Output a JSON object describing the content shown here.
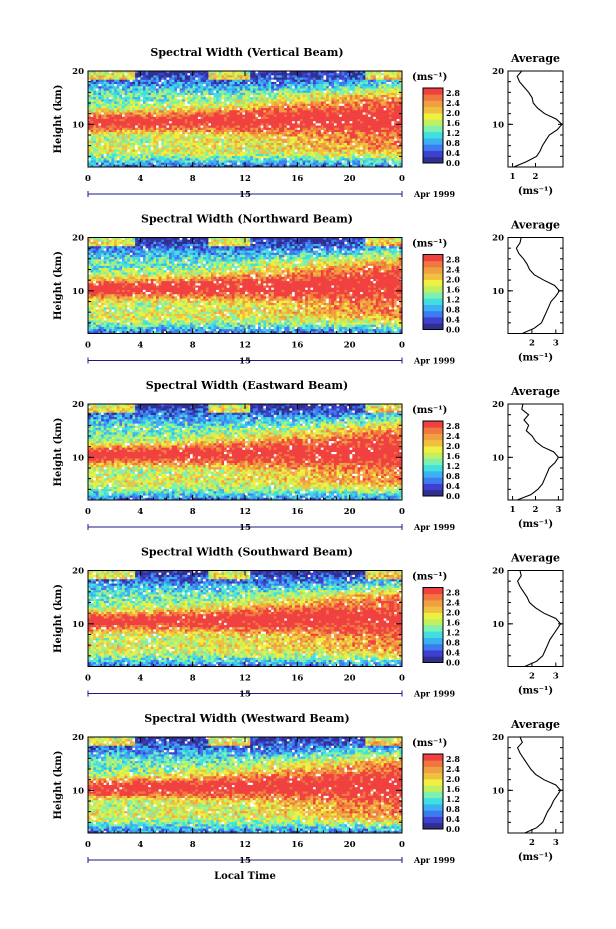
{
  "figure": {
    "x_axis_label": "Local Time",
    "date_label": "Apr 1999",
    "date_tick": "15",
    "colorbar_unit": "(ms⁻¹)",
    "colorbar_ticks": [
      "0.0",
      "0.4",
      "0.8",
      "1.2",
      "1.6",
      "2.0",
      "2.4",
      "2.8"
    ],
    "colorbar_colors": [
      "#2f2f8f",
      "#4040d0",
      "#3c7cf0",
      "#3cb0f0",
      "#40e0e0",
      "#7ef0b0",
      "#c0f060",
      "#f0f040",
      "#f0c040",
      "#f0a040",
      "#f07840",
      "#f04040"
    ]
  },
  "chart_data": [
    {
      "type": "heatmap",
      "title": "Spectral Width (Vertical Beam)",
      "ylabel": "Height (km)",
      "x_ticks": [
        "0",
        "4",
        "8",
        "12",
        "16",
        "20",
        "0"
      ],
      "y_ticks": [
        "20",
        "10"
      ],
      "xlim": [
        0,
        24
      ],
      "ylim": [
        2,
        20
      ],
      "colorbar_range": [
        0.0,
        2.8
      ],
      "average": {
        "title": "Average",
        "xlabel": "(ms⁻¹)",
        "x_ticks": [
          "1",
          "2"
        ],
        "xlim": [
          0.8,
          3.2
        ],
        "heights": [
          2,
          3,
          4,
          5,
          6,
          7,
          8,
          9,
          10,
          11,
          12,
          13,
          14,
          15,
          16,
          17,
          18,
          19,
          20
        ],
        "values": [
          1.05,
          1.6,
          2.05,
          2.2,
          2.3,
          2.45,
          2.6,
          2.95,
          3.15,
          2.9,
          2.4,
          2.1,
          1.9,
          1.85,
          1.7,
          1.5,
          1.3,
          1.2,
          1.4
        ]
      }
    },
    {
      "type": "heatmap",
      "title": "Spectral Width (Northward Beam)",
      "ylabel": "Height (km)",
      "x_ticks": [
        "0",
        "4",
        "8",
        "12",
        "16",
        "20",
        "0"
      ],
      "y_ticks": [
        "20",
        "10"
      ],
      "xlim": [
        0,
        24
      ],
      "ylim": [
        2,
        20
      ],
      "colorbar_range": [
        0.0,
        2.8
      ],
      "average": {
        "title": "Average",
        "xlabel": "(ms⁻¹)",
        "x_ticks": [
          "2",
          "3"
        ],
        "xlim": [
          1.0,
          3.3
        ],
        "heights": [
          2,
          3,
          4,
          5,
          6,
          7,
          8,
          9,
          10,
          11,
          12,
          13,
          14,
          15,
          16,
          17,
          18,
          19,
          20
        ],
        "values": [
          1.6,
          2.1,
          2.4,
          2.5,
          2.6,
          2.7,
          2.8,
          3.0,
          3.15,
          2.95,
          2.5,
          2.1,
          1.9,
          1.8,
          1.65,
          1.45,
          1.35,
          1.5,
          1.55
        ]
      }
    },
    {
      "type": "heatmap",
      "title": "Spectral Width (Eastward Beam)",
      "ylabel": "Height (km)",
      "x_ticks": [
        "0",
        "4",
        "8",
        "12",
        "16",
        "20",
        "0"
      ],
      "y_ticks": [
        "20",
        "10"
      ],
      "xlim": [
        0,
        24
      ],
      "ylim": [
        2,
        20
      ],
      "colorbar_range": [
        0.0,
        2.8
      ],
      "average": {
        "title": "Average",
        "xlabel": "(ms⁻¹)",
        "x_ticks": [
          "1",
          "2",
          "3"
        ],
        "xlim": [
          0.8,
          3.2
        ],
        "heights": [
          2,
          3,
          4,
          5,
          6,
          7,
          8,
          9,
          10,
          11,
          12,
          13,
          14,
          15,
          16,
          17,
          18,
          19,
          20
        ],
        "values": [
          1.2,
          1.8,
          2.1,
          2.3,
          2.4,
          2.5,
          2.6,
          2.85,
          3.0,
          2.8,
          2.3,
          2.0,
          1.85,
          1.6,
          1.7,
          1.5,
          1.7,
          1.4,
          1.45
        ]
      }
    },
    {
      "type": "heatmap",
      "title": "Spectral Width (Southward Beam)",
      "ylabel": "Height (km)",
      "x_ticks": [
        "0",
        "4",
        "8",
        "12",
        "16",
        "20",
        "0"
      ],
      "y_ticks": [
        "20",
        "10"
      ],
      "xlim": [
        0,
        24
      ],
      "ylim": [
        2,
        20
      ],
      "colorbar_range": [
        0.0,
        2.8
      ],
      "average": {
        "title": "Average",
        "xlabel": "(ms⁻¹)",
        "x_ticks": [
          "2",
          "3"
        ],
        "xlim": [
          1.0,
          3.3
        ],
        "heights": [
          2,
          3,
          4,
          5,
          6,
          7,
          8,
          9,
          10,
          11,
          12,
          13,
          14,
          15,
          16,
          17,
          18,
          19,
          20
        ],
        "values": [
          1.7,
          2.2,
          2.45,
          2.55,
          2.65,
          2.75,
          2.9,
          3.05,
          3.2,
          3.0,
          2.5,
          2.15,
          1.9,
          1.8,
          1.65,
          1.5,
          1.4,
          1.55,
          1.5
        ]
      }
    },
    {
      "type": "heatmap",
      "title": "Spectral Width (Westward Beam)",
      "ylabel": "Height (km)",
      "x_ticks": [
        "0",
        "4",
        "8",
        "12",
        "16",
        "20",
        "0"
      ],
      "y_ticks": [
        "20",
        "10"
      ],
      "xlim": [
        0,
        24
      ],
      "ylim": [
        2,
        20
      ],
      "colorbar_range": [
        0.0,
        2.8
      ],
      "average": {
        "title": "Average",
        "xlabel": "(ms⁻¹)",
        "x_ticks": [
          "2",
          "3"
        ],
        "xlim": [
          1.0,
          3.3
        ],
        "heights": [
          2,
          3,
          4,
          5,
          6,
          7,
          8,
          9,
          10,
          11,
          12,
          13,
          14,
          15,
          16,
          17,
          18,
          19,
          20
        ],
        "values": [
          1.7,
          2.2,
          2.45,
          2.55,
          2.65,
          2.8,
          2.9,
          3.05,
          3.2,
          3.0,
          2.5,
          2.15,
          1.95,
          1.8,
          1.65,
          1.5,
          1.4,
          1.6,
          1.5
        ]
      }
    }
  ]
}
